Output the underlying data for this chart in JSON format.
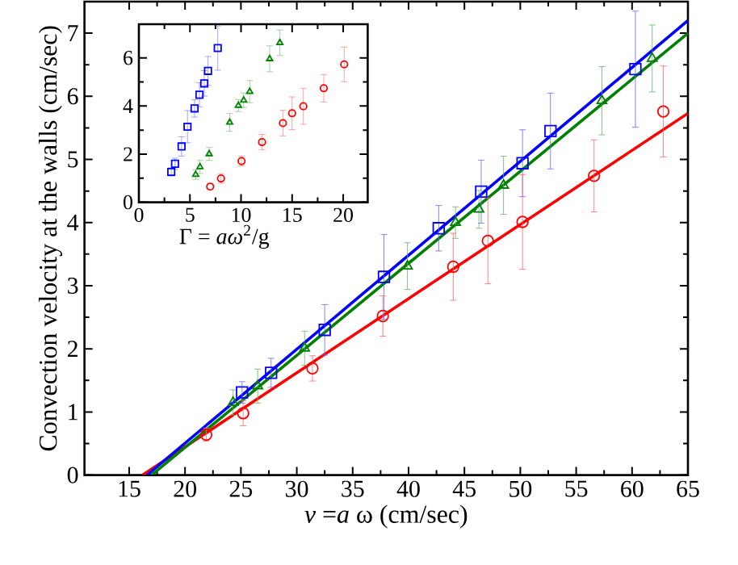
{
  "chart_data": [
    {
      "type": "scatter",
      "xlabel": "*v* =*a* ω  (cm/sec)",
      "ylabel": "Convection velocity at the walls (cm/sec)",
      "xlim": [
        11,
        65
      ],
      "ylim": [
        0,
        7.5
      ],
      "xticks": [
        15,
        20,
        25,
        30,
        35,
        40,
        45,
        50,
        55,
        60,
        65
      ],
      "yticks": [
        0,
        1,
        2,
        3,
        4,
        5,
        6,
        7
      ],
      "series": [
        {
          "type": "line",
          "color": "#ff0000",
          "marker": "none",
          "line_style": "solid",
          "x": [
            16.2,
            65
          ],
          "values": [
            0,
            5.73
          ]
        },
        {
          "type": "line",
          "color": "#0000ff",
          "marker": "none",
          "line_style": "solid",
          "x": [
            16.6,
            65
          ],
          "values": [
            0,
            7.2
          ]
        },
        {
          "type": "line",
          "color": "#008000",
          "marker": "none",
          "line_style": "solid",
          "x": [
            17,
            65
          ],
          "values": [
            0,
            7.0
          ]
        },
        {
          "color": "#0000ff",
          "marker": "square",
          "x": [
            25.1,
            27.7,
            32.5,
            37.8,
            42.7,
            46.5,
            50.2,
            52.7,
            60.3
          ],
          "values": [
            1.31,
            1.62,
            2.3,
            3.14,
            3.91,
            4.49,
            4.94,
            5.45,
            6.43
          ],
          "errors": [
            0.17,
            0.23,
            0.4,
            0.67,
            0.36,
            0.5,
            0.53,
            0.6,
            0.92
          ]
        },
        {
          "color": "#008000",
          "marker": "triangle",
          "x": [
            24.3,
            26.5,
            30.7,
            39.9,
            44.2,
            46.3,
            48.5,
            57.3,
            61.8
          ],
          "values": [
            1.15,
            1.41,
            2.01,
            3.31,
            4.0,
            4.21,
            4.59,
            5.93,
            6.6
          ],
          "errors": [
            0.2,
            0.27,
            0.27,
            0.37,
            0.25,
            0.3,
            0.46,
            0.54,
            0.53
          ]
        },
        {
          "color": "#ff0000",
          "marker": "circle",
          "x": [
            21.9,
            25.2,
            31.4,
            37.7,
            44.0,
            47.1,
            50.2,
            56.6,
            62.8
          ],
          "values": [
            0.64,
            0.98,
            1.69,
            2.52,
            3.3,
            3.71,
            4.01,
            4.74,
            5.76
          ],
          "errors": [
            0.1,
            0.2,
            0.2,
            0.32,
            0.53,
            0.68,
            0.75,
            0.57,
            0.72
          ]
        }
      ]
    },
    {
      "type": "scatter",
      "xlabel": "Γ = *aω*$^{2}$/g",
      "xlim": [
        0,
        22.4
      ],
      "ylim": [
        0,
        7.4
      ],
      "xticks": [
        0,
        5,
        10,
        15,
        20
      ],
      "yticks": [
        0,
        2,
        4,
        6
      ],
      "series": [
        {
          "color": "#0000ff",
          "marker": "square",
          "x": [
            3.17,
            3.54,
            4.18,
            4.76,
            5.45,
            5.93,
            6.4,
            6.77,
            7.72
          ],
          "values": [
            1.26,
            1.6,
            2.32,
            3.14,
            3.9,
            4.47,
            4.94,
            5.46,
            6.41
          ],
          "errors": [
            0.17,
            0.23,
            0.4,
            0.67,
            0.36,
            0.5,
            0.53,
            0.6,
            0.92
          ]
        },
        {
          "color": "#008000",
          "marker": "triangle",
          "x": [
            5.56,
            5.98,
            6.88,
            8.89,
            9.74,
            10.26,
            10.85,
            12.8,
            13.8
          ],
          "values": [
            1.15,
            1.47,
            2.01,
            3.32,
            4.02,
            4.24,
            4.6,
            5.96,
            6.63
          ],
          "errors": [
            0.2,
            0.27,
            0.27,
            0.37,
            0.25,
            0.3,
            0.46,
            0.54,
            0.53
          ]
        },
        {
          "color": "#ff0000",
          "marker": "circle",
          "x": [
            6.98,
            8.04,
            10.05,
            12.06,
            14.1,
            15.0,
            16.1,
            18.1,
            20.1
          ],
          "values": [
            0.65,
            0.99,
            1.71,
            2.5,
            3.29,
            3.7,
            3.99,
            4.74,
            5.73
          ],
          "errors": [
            null,
            0.2,
            0.2,
            0.32,
            0.53,
            0.68,
            0.75,
            0.57,
            0.72
          ]
        }
      ]
    }
  ]
}
